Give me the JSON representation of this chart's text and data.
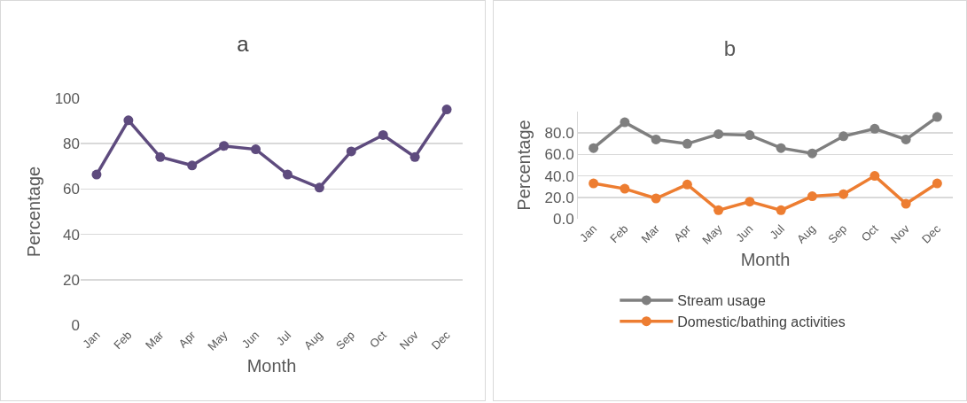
{
  "chart_data": [
    {
      "type": "line",
      "title": "a",
      "xlabel": "Month",
      "ylabel": "Percentage",
      "categories": [
        "Jan",
        "Feb",
        "Mar",
        "Apr",
        "May",
        "Jun",
        "Jul",
        "Aug",
        "Sep",
        "Oct",
        "Nov",
        "Dec"
      ],
      "series": [
        {
          "color": "#5e4b7e",
          "values": [
            66.4,
            90.3,
            74.1,
            70.4,
            79,
            77.5,
            66.4,
            60.6,
            76.6,
            83.8,
            74.1,
            95.1
          ]
        }
      ],
      "ylim": [
        0,
        100
      ],
      "yticks": [
        0,
        20,
        40,
        60,
        80,
        100
      ],
      "grid": "y",
      "legend": false,
      "marker": "circle",
      "line_style": "solid"
    },
    {
      "type": "line",
      "title": "b",
      "xlabel": "Month",
      "ylabel": "Percentage",
      "categories": [
        "Jan",
        "Feb",
        "Mar",
        "Apr",
        "May",
        "Jun",
        "Jul",
        "Aug",
        "Sep",
        "Oct",
        "Nov",
        "Dec"
      ],
      "series": [
        {
          "name": "Stream usage",
          "color": "#7f7f7f",
          "values": [
            66,
            90,
            74,
            70,
            79,
            78,
            66,
            61,
            77,
            84,
            74,
            95
          ]
        },
        {
          "name": "Domestic/bathing activities",
          "color": "#ed7d31",
          "values": [
            33,
            28,
            19,
            32,
            8,
            16,
            8,
            21,
            23,
            40,
            14,
            33
          ]
        }
      ],
      "ylim": [
        0,
        100
      ],
      "yticks": [
        {
          "value": 0,
          "label": "0.0"
        },
        {
          "value": 20,
          "label": "20.0"
        },
        {
          "value": 40,
          "label": "40.0"
        },
        {
          "value": 60,
          "label": "60.0"
        },
        {
          "value": 80,
          "label": "80.0"
        }
      ],
      "grid": "y",
      "legend": "bottom",
      "marker": "circle",
      "line_style": "solid"
    }
  ]
}
